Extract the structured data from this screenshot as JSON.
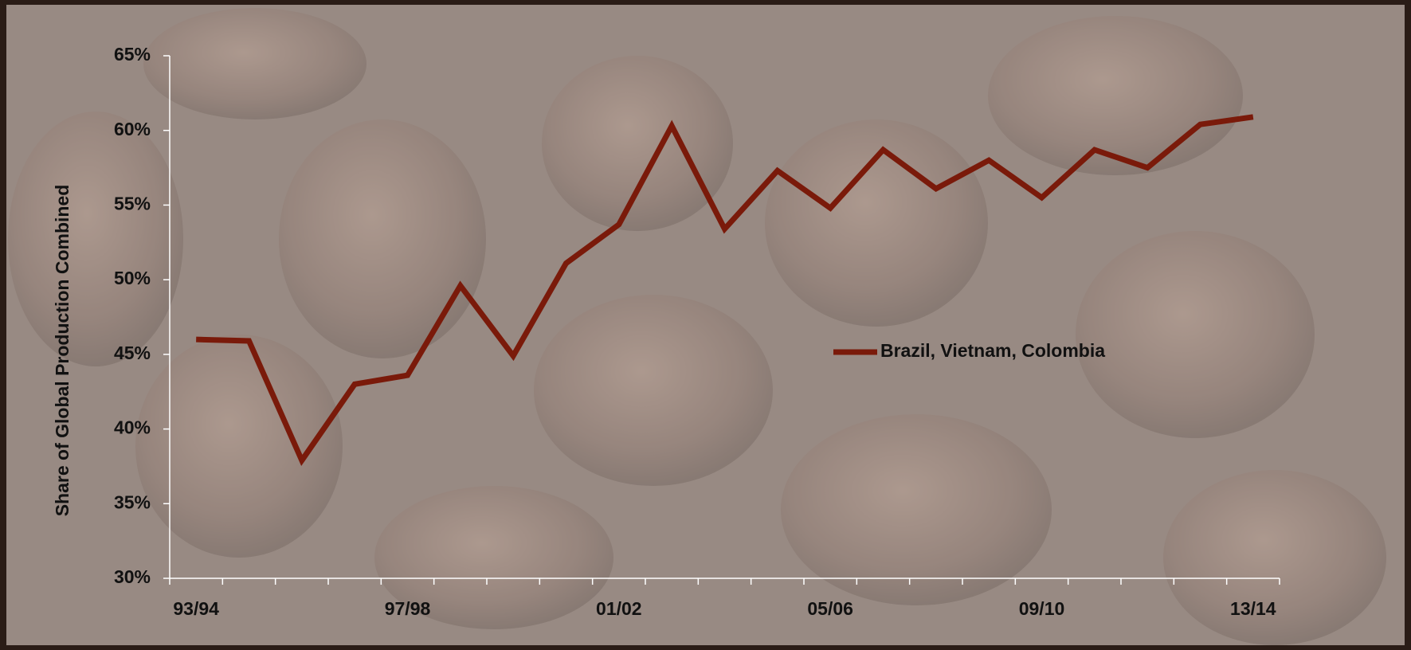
{
  "chart_data": {
    "type": "line",
    "y_label": "Share of Global Production Combined",
    "categories": [
      "93/94",
      null,
      null,
      null,
      "97/98",
      null,
      null,
      null,
      "01/02",
      null,
      null,
      null,
      "05/06",
      null,
      null,
      null,
      "09/10",
      null,
      null,
      null,
      "13/14"
    ],
    "series": [
      {
        "name": "Brazil, Vietnam, Colombia",
        "color": "#7a1a0a",
        "values": [
          46.0,
          45.9,
          37.9,
          43.0,
          43.6,
          49.6,
          44.9,
          51.1,
          53.7,
          60.3,
          53.4,
          57.3,
          54.8,
          58.7,
          56.1,
          58.0,
          55.5,
          58.7,
          57.5,
          60.4,
          60.9
        ]
      }
    ],
    "ylim": [
      30,
      65
    ],
    "yticks": [
      {
        "value": 30,
        "label": "30%"
      },
      {
        "value": 35,
        "label": "35%"
      },
      {
        "value": 40,
        "label": "40%"
      },
      {
        "value": 45,
        "label": "45%"
      },
      {
        "value": 50,
        "label": "50%"
      },
      {
        "value": 55,
        "label": "55%"
      },
      {
        "value": 60,
        "label": "60%"
      },
      {
        "value": 65,
        "label": "65%"
      }
    ],
    "grid": false,
    "legend": "center"
  }
}
